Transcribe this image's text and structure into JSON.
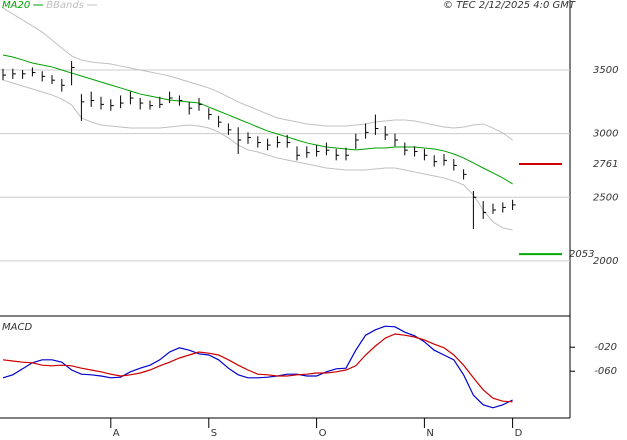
{
  "chart_data": [
    {
      "type": "ohlc",
      "annotation": "© TEC 2/12/2025 4:0 GMT",
      "color": "#000000",
      "categories": [
        null,
        null,
        null,
        null,
        null,
        null,
        null,
        null,
        null,
        null,
        null,
        "A",
        null,
        null,
        null,
        null,
        null,
        null,
        null,
        null,
        null,
        "S",
        null,
        null,
        null,
        null,
        null,
        null,
        null,
        null,
        null,
        null,
        "O",
        null,
        null,
        null,
        null,
        null,
        null,
        null,
        null,
        null,
        null,
        "N",
        null,
        null,
        null,
        null,
        null,
        null,
        null,
        null,
        "D"
      ],
      "high": [
        3510,
        3510,
        3500,
        3520,
        3490,
        3460,
        3430,
        3570,
        3310,
        3330,
        3290,
        3270,
        3300,
        3330,
        3280,
        3260,
        3290,
        3330,
        3300,
        3250,
        3280,
        3200,
        3140,
        3080,
        3050,
        3010,
        2980,
        2960,
        2980,
        2990,
        2900,
        2900,
        2910,
        2930,
        2880,
        2890,
        3000,
        3080,
        3150,
        3060,
        3000,
        2930,
        2900,
        2880,
        2830,
        2840,
        2800,
        2720,
        2550,
        2470,
        2450,
        2460,
        2480
      ],
      "low": [
        3420,
        3430,
        3430,
        3450,
        3410,
        3390,
        3330,
        3380,
        3100,
        3210,
        3190,
        3180,
        3200,
        3230,
        3190,
        3190,
        3200,
        3240,
        3220,
        3150,
        3180,
        3110,
        3050,
        2990,
        2840,
        2920,
        2890,
        2870,
        2890,
        2890,
        2790,
        2810,
        2820,
        2830,
        2790,
        2790,
        2880,
        2960,
        2990,
        2950,
        2900,
        2830,
        2820,
        2790,
        2740,
        2750,
        2710,
        2640,
        2250,
        2330,
        2370,
        2380,
        2400
      ],
      "close": [
        3460,
        3470,
        3470,
        3480,
        3450,
        3420,
        3380,
        3520,
        3250,
        3260,
        3230,
        3220,
        3240,
        3280,
        3240,
        3220,
        3230,
        3280,
        3260,
        3200,
        3230,
        3150,
        3090,
        3030,
        2950,
        2970,
        2930,
        2910,
        2930,
        2930,
        2830,
        2850,
        2860,
        2870,
        2830,
        2830,
        2950,
        3010,
        3040,
        2990,
        2950,
        2870,
        2860,
        2830,
        2780,
        2790,
        2750,
        2680,
        2500,
        2380,
        2400,
        2420,
        2440
      ],
      "series": [
        {
          "name": "MA20",
          "color": "#00a000",
          "values": [
            3618,
            3602,
            3579,
            3555,
            3539,
            3524,
            3500,
            3476,
            3453,
            3429,
            3406,
            3382,
            3359,
            3335,
            3311,
            3296,
            3280,
            3264,
            3256,
            3249,
            3241,
            3209,
            3178,
            3147,
            3115,
            3084,
            3052,
            3021,
            2997,
            2974,
            2950,
            2927,
            2911,
            2895,
            2887,
            2879,
            2872,
            2879,
            2887,
            2887,
            2895,
            2895,
            2895,
            2887,
            2879,
            2864,
            2840,
            2809,
            2770,
            2730,
            2691,
            2652,
            2605
          ]
        }
      ],
      "bands": {
        "name": "BBands",
        "color": "#c0c0c0",
        "upper": [
          3987,
          3940,
          3893,
          3846,
          3798,
          3736,
          3673,
          3610,
          3579,
          3563,
          3555,
          3547,
          3531,
          3516,
          3500,
          3484,
          3469,
          3453,
          3429,
          3406,
          3382,
          3359,
          3327,
          3288,
          3249,
          3217,
          3186,
          3154,
          3123,
          3107,
          3092,
          3076,
          3068,
          3060,
          3060,
          3060,
          3068,
          3076,
          3092,
          3099,
          3107,
          3107,
          3099,
          3084,
          3068,
          3052,
          3044,
          3052,
          3068,
          3076,
          3044,
          3005,
          2950
        ],
        "lower": [
          3421,
          3398,
          3374,
          3351,
          3327,
          3304,
          3272,
          3225,
          3123,
          3092,
          3068,
          3060,
          3052,
          3044,
          3044,
          3044,
          3044,
          3052,
          3060,
          3068,
          3060,
          3044,
          3013,
          2966,
          2911,
          2872,
          2856,
          2832,
          2809,
          2793,
          2777,
          2762,
          2746,
          2730,
          2722,
          2714,
          2714,
          2714,
          2722,
          2730,
          2730,
          2714,
          2699,
          2683,
          2667,
          2652,
          2628,
          2597,
          2518,
          2400,
          2306,
          2259,
          2243
        ]
      },
      "levels": [
        {
          "value": 2761,
          "color": "#cc0000"
        },
        {
          "value": 2053,
          "color": "#00aa00"
        }
      ],
      "ylim": [
        1575,
        4050
      ],
      "yticks": [
        2000,
        2500,
        3000,
        3500
      ],
      "grid": true
    },
    {
      "type": "line",
      "title": "MACD",
      "series": [
        {
          "color": "#0000cc",
          "values": [
            -71,
            -66,
            -56,
            -46,
            -41,
            -41,
            -45,
            -58,
            -65,
            -66,
            -68,
            -71,
            -70,
            -61,
            -55,
            -50,
            -41,
            -28,
            -21,
            -25,
            -31,
            -33,
            -41,
            -55,
            -66,
            -71,
            -71,
            -70,
            -68,
            -65,
            -65,
            -68,
            -68,
            -61,
            -56,
            -55,
            -25,
            0,
            9,
            15,
            14,
            5,
            -1,
            -11,
            -25,
            -33,
            -41,
            -66,
            -100,
            -116,
            -121,
            -116,
            -108
          ]
        },
        {
          "color": "#cc0000",
          "values": [
            -41,
            -43,
            -45,
            -46,
            -50,
            -51,
            -50,
            -51,
            -55,
            -58,
            -61,
            -65,
            -68,
            -66,
            -63,
            -58,
            -51,
            -45,
            -38,
            -33,
            -28,
            -30,
            -33,
            -41,
            -50,
            -58,
            -65,
            -66,
            -68,
            -68,
            -66,
            -65,
            -63,
            -63,
            -61,
            -58,
            -51,
            -33,
            -18,
            -5,
            2,
            0,
            -3,
            -8,
            -15,
            -21,
            -33,
            -50,
            -71,
            -91,
            -105,
            -110,
            -111
          ]
        }
      ],
      "ylim": [
        -138,
        32
      ],
      "yticks": [
        {
          "value": -20,
          "label": "-020"
        },
        {
          "value": -60,
          "label": "-060"
        }
      ]
    }
  ]
}
